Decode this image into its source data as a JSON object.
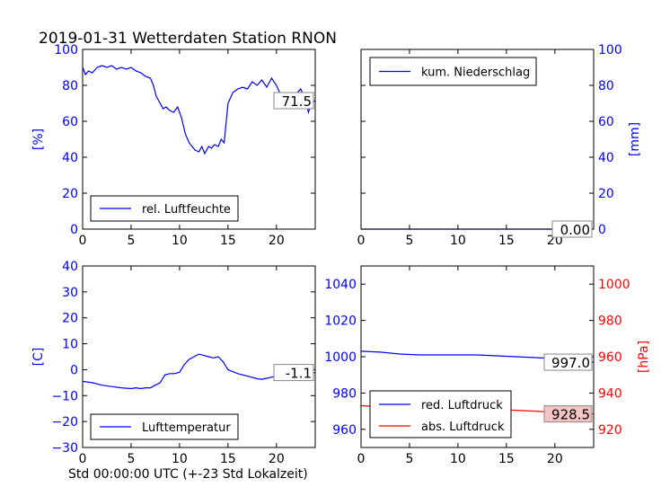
{
  "figure": {
    "title": "2019-01-31 Wetterdaten Station RNON",
    "xlabel": "Std 00:00:00 UTC (+-23 Std Lokalzeit)"
  },
  "colors": {
    "blue": "#0000ff",
    "red": "#ff0000",
    "axis": "#000000",
    "box_fill": "#ffffff",
    "red_box_fill": "#f4c4c4"
  },
  "chart_data": [
    {
      "id": "humidity",
      "type": "line",
      "ylabel": "[%]",
      "xlim": [
        0,
        24
      ],
      "ylim": [
        0,
        100
      ],
      "xticks": [
        0,
        5,
        10,
        15,
        20
      ],
      "yticks": [
        0,
        20,
        40,
        60,
        80,
        100
      ],
      "legend": "lower-center",
      "series": [
        {
          "name": "rel. Luftfeuchte",
          "color": "#0000ff",
          "x": [
            0,
            0.3,
            0.6,
            1,
            1.5,
            2,
            2.5,
            3,
            3.5,
            4,
            4.5,
            5,
            5.5,
            6,
            6.5,
            7,
            7.3,
            7.6,
            8,
            8.3,
            8.6,
            9,
            9.4,
            9.8,
            10.2,
            10.6,
            11,
            11.3,
            11.6,
            12,
            12.3,
            12.6,
            13,
            13.3,
            13.6,
            14,
            14.3,
            14.6,
            15,
            15.5,
            16,
            16.5,
            17,
            17.5,
            18,
            18.5,
            19,
            19.5,
            20,
            20.5,
            21,
            21.5,
            22,
            22.5,
            23,
            23.3,
            23.6,
            24
          ],
          "y": [
            90,
            86,
            88,
            87,
            90,
            91,
            90,
            91,
            89,
            90,
            89,
            90,
            88,
            87,
            85,
            84,
            80,
            74,
            70,
            67,
            68,
            66,
            65,
            68,
            62,
            53,
            48,
            46,
            44,
            43,
            46,
            42,
            46,
            45,
            47,
            46,
            50,
            48,
            70,
            76,
            78,
            79,
            78,
            82,
            80,
            83,
            79,
            84,
            80,
            74,
            72,
            76,
            75,
            78,
            72,
            65,
            70,
            71.5
          ]
        }
      ],
      "annotation": "71.5"
    },
    {
      "id": "precip",
      "type": "line",
      "ylabel": "[mm]",
      "xlim": [
        0,
        24
      ],
      "ylim": [
        0,
        100
      ],
      "xticks": [
        0,
        5,
        10,
        15,
        20
      ],
      "yticks": [
        0,
        20,
        40,
        60,
        80,
        100
      ],
      "legend": "top-left",
      "series": [
        {
          "name": "kum. Niederschlag",
          "color": "#0000ff",
          "x": [
            0,
            24
          ],
          "y": [
            0,
            0
          ]
        }
      ],
      "annotation": "0.00"
    },
    {
      "id": "temperature",
      "type": "line",
      "ylabel": "[C]",
      "xlim": [
        0,
        24
      ],
      "ylim": [
        -30,
        40
      ],
      "xticks": [
        0,
        5,
        10,
        15,
        20
      ],
      "yticks": [
        -30,
        -20,
        -10,
        0,
        10,
        20,
        30,
        40
      ],
      "legend": "lower-center",
      "series": [
        {
          "name": "Lufttemperatur",
          "color": "#0000ff",
          "x": [
            0,
            1,
            2,
            3,
            4,
            5,
            5.5,
            6,
            6.5,
            7,
            7.5,
            8,
            8.5,
            9,
            9.5,
            10,
            10.5,
            11,
            11.5,
            12,
            12.5,
            13,
            13.5,
            14,
            14.5,
            15,
            16,
            17,
            18,
            18.5,
            19,
            20,
            21,
            22,
            23,
            24
          ],
          "y": [
            -4.5,
            -5,
            -6,
            -6.5,
            -7,
            -7.3,
            -7,
            -7.3,
            -7,
            -7,
            -6,
            -5,
            -2,
            -1.5,
            -1.5,
            -1,
            2,
            4,
            5,
            6,
            5.5,
            5,
            4.5,
            5,
            3,
            0,
            -1.5,
            -2.5,
            -3.5,
            -3.7,
            -3.3,
            -2.5,
            -2.3,
            -2,
            -1.5,
            -1.1
          ]
        }
      ],
      "annotation": "-1.1"
    },
    {
      "id": "pressure",
      "type": "line",
      "ylabel": "[hPa]",
      "xlim": [
        0,
        24
      ],
      "ylim": [
        950,
        1050
      ],
      "y2lim": [
        910,
        1010
      ],
      "xticks": [
        0,
        5,
        10,
        15,
        20
      ],
      "yticks": [
        960,
        980,
        1000,
        1020,
        1040
      ],
      "y2ticks": [
        920,
        940,
        960,
        980,
        1000
      ],
      "legend": "lower-left",
      "series": [
        {
          "name": "red. Luftdruck",
          "color": "#0000ff",
          "axis": "left",
          "x": [
            0,
            2,
            4,
            6,
            8,
            10,
            12,
            14,
            16,
            18,
            20,
            22,
            24
          ],
          "y": [
            1003,
            1002.5,
            1001.5,
            1001,
            1001,
            1001,
            1001,
            1000.5,
            1000,
            999.5,
            999,
            998,
            997
          ]
        },
        {
          "name": "abs. Luftdruck",
          "color": "#ff0000",
          "axis": "right",
          "x": [
            0,
            2,
            4,
            6,
            8,
            10,
            12,
            14,
            16,
            18,
            20,
            22,
            24
          ],
          "y": [
            933,
            932.5,
            932,
            931.5,
            931.5,
            931.5,
            931,
            931,
            930.5,
            930,
            929.5,
            929,
            928.5
          ]
        }
      ],
      "annotation": "997.0",
      "annotation2": "928.5"
    }
  ]
}
